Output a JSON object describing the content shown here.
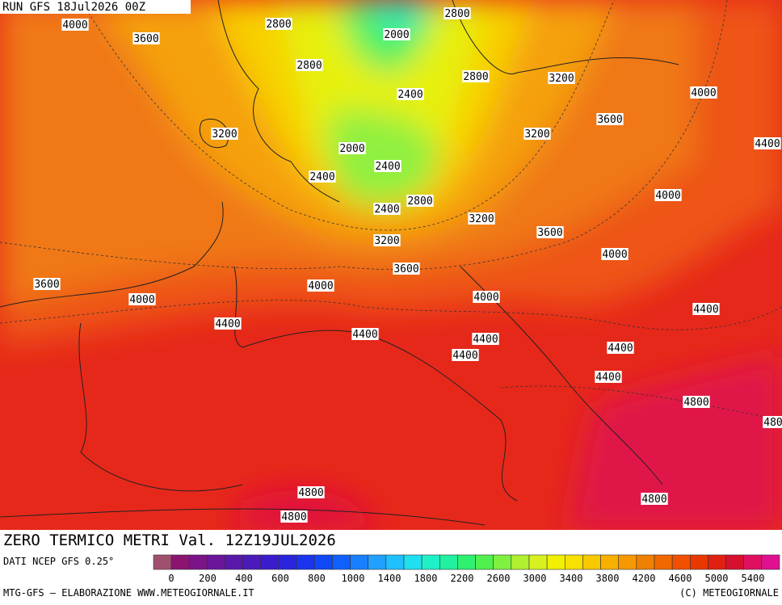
{
  "header": {
    "run": "RUN GFS 18Jul2026 00Z"
  },
  "contour_labels": [
    "4000",
    "2800",
    "2800",
    "3600",
    "2000",
    "2800",
    "2800",
    "3200",
    "2400",
    "4000",
    "3600",
    "3200",
    "3200",
    "2000",
    "4400",
    "2400",
    "2400",
    "2800",
    "4000",
    "2400",
    "3200",
    "3600",
    "3200",
    "4000",
    "3600",
    "3600",
    "4000",
    "4000",
    "4000",
    "4400",
    "4400",
    "4400",
    "4400",
    "4400",
    "4400",
    "4400",
    "4800",
    "480",
    "4800",
    "4800",
    "4800"
  ],
  "title": "ZERO TERMICO METRI Val. 12Z19JUL2026",
  "source": "DATI NCEP GFS 0.25°",
  "legend": {
    "colors": [
      "#a0506e",
      "#8a1470",
      "#7a1488",
      "#6a169a",
      "#5a18aa",
      "#4a1aba",
      "#3a1ccc",
      "#2a24dd",
      "#1a34ee",
      "#1048f8",
      "#1060ff",
      "#1880ff",
      "#20a0ff",
      "#20c0ff",
      "#20e0f0",
      "#20f0c8",
      "#20f0a0",
      "#30f070",
      "#50f050",
      "#80f040",
      "#b0f030",
      "#d8f020",
      "#f0f000",
      "#f8e000",
      "#f8c800",
      "#f8b000",
      "#f89800",
      "#f08000",
      "#f06800",
      "#f05000",
      "#e83800",
      "#e02010",
      "#d81030",
      "#e01060",
      "#e01090"
    ],
    "labels": [
      "0",
      "200",
      "400",
      "600",
      "800",
      "1000",
      "1400",
      "1800",
      "2200",
      "2600",
      "3000",
      "3400",
      "3800",
      "4200",
      "4600",
      "5000",
      "5400"
    ]
  },
  "footer": {
    "left": "MTG-GFS — ELABORAZIONE WWW.METEOGIORNALE.IT",
    "right": "(C) METEOGIORNALE"
  }
}
